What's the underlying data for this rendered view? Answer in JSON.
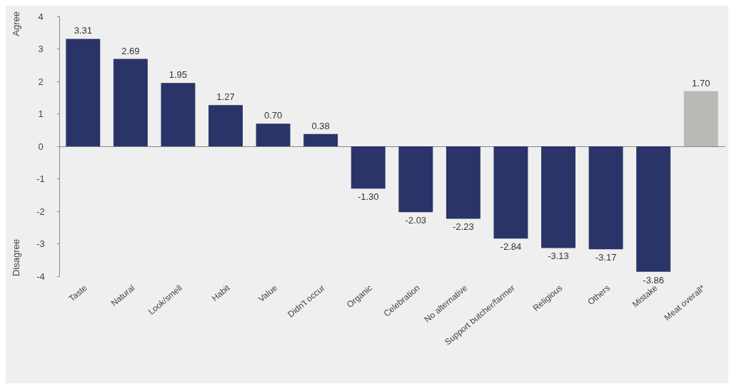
{
  "chart_data": {
    "type": "bar",
    "categories": [
      "Taste",
      "Natural",
      "Look/smell",
      "Habit",
      "Value",
      "Didn't occur",
      "Organic",
      "Celebration",
      "No alternative",
      "Support butcher/farmer",
      "Religious",
      "Others",
      "Mistake",
      "Meat overall*"
    ],
    "values": [
      3.31,
      2.69,
      1.95,
      1.27,
      0.7,
      0.38,
      -1.3,
      -2.03,
      -2.23,
      -2.84,
      -3.13,
      -3.17,
      -3.86,
      1.7
    ],
    "colors": [
      "#2b3468",
      "#2b3468",
      "#2b3468",
      "#2b3468",
      "#2b3468",
      "#2b3468",
      "#2b3468",
      "#2b3468",
      "#2b3468",
      "#2b3468",
      "#2b3468",
      "#2b3468",
      "#2b3468",
      "#b9bbb6"
    ],
    "ylim": [
      -4,
      4
    ],
    "yticks": [
      -4,
      -3,
      -2,
      -1,
      0,
      1,
      2,
      3,
      4
    ],
    "annotations": [
      "Agree",
      "Disagree"
    ],
    "value_labels": [
      "3.31",
      "2.69",
      "1.95",
      "1.27",
      "0.70",
      "0.38",
      "-1.30",
      "-2.03",
      "-2.23",
      "-2.84",
      "-3.13",
      "-3.17",
      "-3.86",
      "1.70"
    ]
  }
}
